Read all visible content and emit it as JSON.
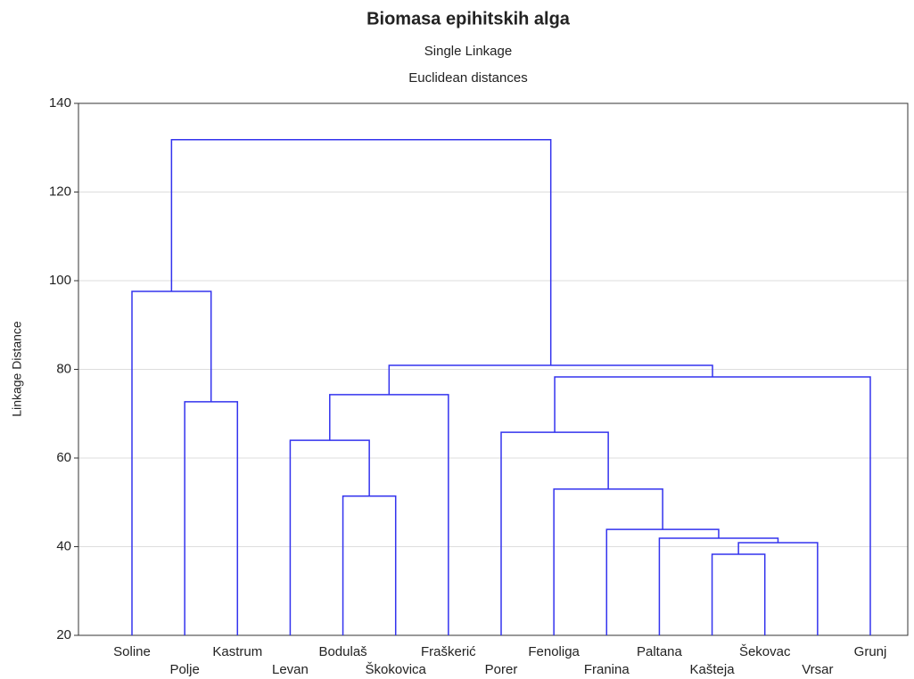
{
  "chart_data": {
    "type": "dendrogram",
    "title": "Biomasa epihitskih alga",
    "subtitle": "Single Linkage",
    "note": "Euclidean distances",
    "y_label": "Linkage Distance",
    "color": "#3333ee",
    "grid": true,
    "ylim": [
      20,
      140
    ],
    "yticks": [
      20,
      40,
      60,
      80,
      100,
      120,
      140
    ],
    "tree": {
      "height": 131.8,
      "children": [
        {
          "height": 97.6,
          "children": [
            {
              "label": "Soline"
            },
            {
              "height": 72.7,
              "children": [
                {
                  "label": "Polje"
                },
                {
                  "label": "Kastrum"
                }
              ]
            }
          ]
        },
        {
          "height": 80.9,
          "children": [
            {
              "height": 74.3,
              "children": [
                {
                  "height": 64,
                  "children": [
                    {
                      "label": "Levan"
                    },
                    {
                      "height": 51.4,
                      "children": [
                        {
                          "label": "Bodulaš"
                        },
                        {
                          "label": "Škokovica"
                        }
                      ]
                    }
                  ]
                },
                {
                  "label": "Fraškerić"
                }
              ]
            },
            {
              "height": 78.3,
              "children": [
                {
                  "height": 65.8,
                  "children": [
                    {
                      "label": "Porer"
                    },
                    {
                      "height": 53,
                      "children": [
                        {
                          "label": "Fenoliga"
                        },
                        {
                          "height": 43.9,
                          "children": [
                            {
                              "label": "Franina"
                            },
                            {
                              "height": 41.9,
                              "children": [
                                {
                                  "label": "Paltana"
                                },
                                {
                                  "height": 40.9,
                                  "children": [
                                    {
                                      "height": 38.3,
                                      "children": [
                                        {
                                          "label": "Kašteja"
                                        },
                                        {
                                          "label": "Šekovac"
                                        }
                                      ]
                                    },
                                    {
                                      "label": "Vrsar"
                                    }
                                  ]
                                }
                              ]
                            }
                          ]
                        }
                      ]
                    }
                  ]
                },
                {
                  "label": "Grunj"
                }
              ]
            }
          ]
        }
      ]
    }
  }
}
